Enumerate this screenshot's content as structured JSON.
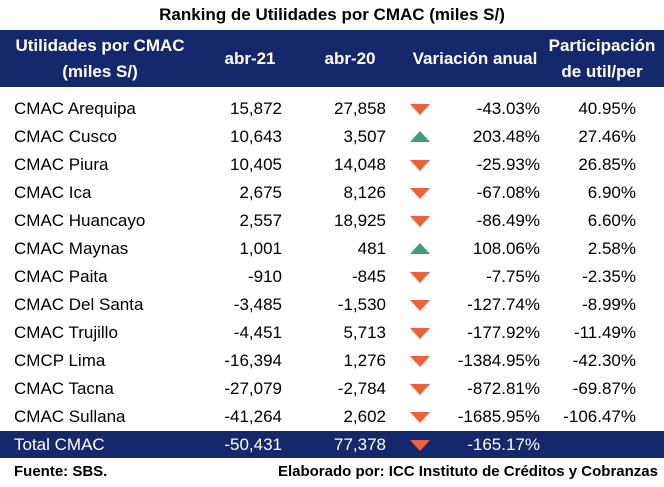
{
  "title": "Ranking de Utilidades por CMAC (miles S/)",
  "headers": {
    "name": "Utilidades por CMAC (miles S/)",
    "abr21": "abr-21",
    "abr20": "abr-20",
    "variation": "Variación anual",
    "share": "Participación de util/per"
  },
  "rows": [
    {
      "name": "CMAC Arequipa",
      "abr21": "15,872",
      "abr20": "27,858",
      "trend": "down",
      "variation": "-43.03%",
      "share": "40.95%"
    },
    {
      "name": "CMAC Cusco",
      "abr21": "10,643",
      "abr20": "3,507",
      "trend": "up",
      "variation": "203.48%",
      "share": "27.46%"
    },
    {
      "name": "CMAC Piura",
      "abr21": "10,405",
      "abr20": "14,048",
      "trend": "down",
      "variation": "-25.93%",
      "share": "26.85%"
    },
    {
      "name": "CMAC Ica",
      "abr21": "2,675",
      "abr20": "8,126",
      "trend": "down",
      "variation": "-67.08%",
      "share": "6.90%"
    },
    {
      "name": "CMAC Huancayo",
      "abr21": "2,557",
      "abr20": "18,925",
      "trend": "down",
      "variation": "-86.49%",
      "share": "6.60%"
    },
    {
      "name": "CMAC Maynas",
      "abr21": "1,001",
      "abr20": "481",
      "trend": "up",
      "variation": "108.06%",
      "share": "2.58%"
    },
    {
      "name": "CMAC Paita",
      "abr21": "-910",
      "abr20": "-845",
      "trend": "down",
      "variation": "-7.75%",
      "share": "-2.35%"
    },
    {
      "name": "CMAC Del Santa",
      "abr21": "-3,485",
      "abr20": "-1,530",
      "trend": "down",
      "variation": "-127.74%",
      "share": "-8.99%"
    },
    {
      "name": "CMAC Trujillo",
      "abr21": "-4,451",
      "abr20": "5,713",
      "trend": "down",
      "variation": "-177.92%",
      "share": "-11.49%"
    },
    {
      "name": "CMCP Lima",
      "abr21": "-16,394",
      "abr20": "1,276",
      "trend": "down",
      "variation": "-1384.95%",
      "share": "-42.30%"
    },
    {
      "name": "CMAC Tacna",
      "abr21": "-27,079",
      "abr20": "-2,784",
      "trend": "down",
      "variation": "-872.81%",
      "share": "-69.87%"
    },
    {
      "name": "CMAC Sullana",
      "abr21": "-41,264",
      "abr20": "2,602",
      "trend": "down",
      "variation": "-1685.95%",
      "share": "-106.47%"
    }
  ],
  "total": {
    "name": "Total CMAC",
    "abr21": "-50,431",
    "abr20": "77,378",
    "trend": "down",
    "variation": "-165.17%"
  },
  "footer": {
    "source": "Fuente: SBS.",
    "credit": "Elaborado por: ICC Instituto de Créditos y Cobranzas"
  },
  "colors": {
    "header_bg": "#14296b",
    "down_arrow": "#f0603a",
    "up_arrow": "#3f9e7a"
  },
  "icons": {
    "down": "triangle-down-icon",
    "up": "triangle-up-icon"
  }
}
